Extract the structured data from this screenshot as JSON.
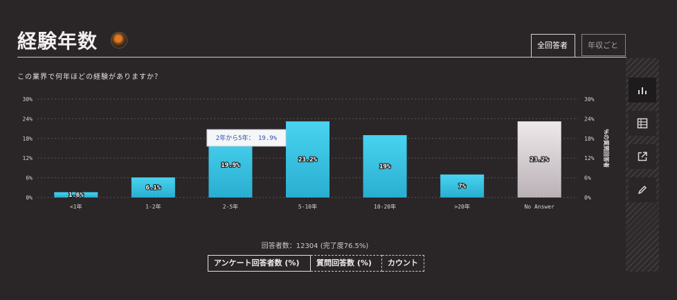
{
  "header": {
    "title": "経験年数"
  },
  "tabs": [
    {
      "label": "全回答者",
      "active": true
    },
    {
      "label": "年収ごと",
      "active": false
    }
  ],
  "question": "この業界で何年ほどの経験がありますか？",
  "tooltip": "2年から5年： 19.9%",
  "respondents": "回答者数：12304 (完了度76.5%)",
  "modes": [
    "アンケート回答者数 (%)",
    "質問回答数 (%)",
    "カウント"
  ],
  "sidebar": [
    "bar-chart-icon",
    "table-icon",
    "external-link-icon",
    "pencil-icon"
  ],
  "colors": {
    "bar": "#3dc7e6",
    "bar_na": "#e6dfe2",
    "background": "#2a2628"
  },
  "chart_data": {
    "type": "bar",
    "categories": [
      "<1年",
      "1-2年",
      "2-5年",
      "5-10年",
      "10-20年",
      ">20年",
      "No Answer"
    ],
    "values": [
      1.6,
      6.1,
      19.9,
      23.2,
      19,
      7,
      23.2
    ],
    "data_labels": [
      "1.6%",
      "6.1%",
      "19.9%",
      "23.2%",
      "19%",
      "7%",
      "23.2%"
    ],
    "y_ticks": [
      "0%",
      "6%",
      "12%",
      "18%",
      "24%",
      "30%"
    ],
    "ylim": [
      0,
      30
    ],
    "y2_label": "％の質問回答者",
    "grid": true
  }
}
